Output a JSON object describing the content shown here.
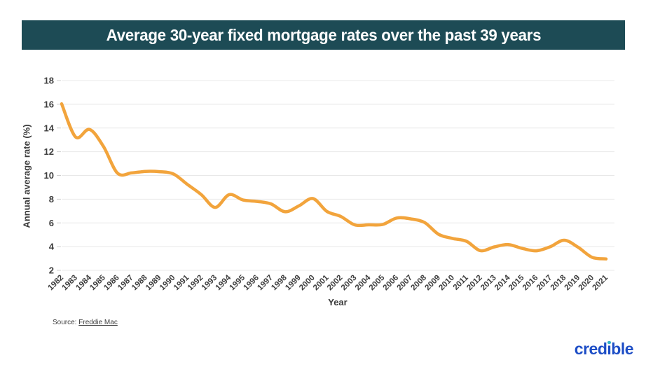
{
  "page": {
    "title": "Average 30-year fixed mortgage rates over the past 39 years",
    "source_label": "Source:",
    "source_link": "Freddie Mac",
    "logo": {
      "pre": "cred",
      "i_stem": "ı",
      "post": "ble"
    }
  },
  "colors": {
    "title_bar_bg": "#1d4b55",
    "title_text": "#ffffff",
    "line": "#f2a43c",
    "gridline": "#e8e8e8",
    "tick_mark": "#cfcfcf",
    "tick_text": "#3e3e3e",
    "logo_blue": "#1e4ec6",
    "logo_dot_teal": "#33b5c6"
  },
  "chart_data": {
    "type": "line",
    "title": "Average 30-year fixed mortgage rates over the past 39 years",
    "xlabel": "Year",
    "ylabel": "Annual average rate (%)",
    "categories": [
      "1982",
      "1983",
      "1984",
      "1985",
      "1986",
      "1987",
      "1988",
      "1989",
      "1990",
      "1991",
      "1992",
      "1993",
      "1994",
      "1995",
      "1996",
      "1997",
      "1998",
      "1999",
      "2000",
      "2001",
      "2002",
      "2003",
      "2004",
      "2005",
      "2006",
      "2007",
      "2008",
      "2009",
      "2010",
      "2011",
      "2012",
      "2013",
      "2014",
      "2015",
      "2016",
      "2017",
      "2018",
      "2019",
      "2020",
      "2021"
    ],
    "values": [
      16.04,
      13.24,
      13.88,
      12.43,
      10.19,
      10.21,
      10.34,
      10.32,
      10.13,
      9.25,
      8.39,
      7.31,
      8.38,
      7.93,
      7.81,
      7.6,
      6.94,
      7.44,
      8.05,
      6.97,
      6.54,
      5.83,
      5.84,
      5.87,
      6.41,
      6.34,
      6.03,
      5.04,
      4.69,
      4.45,
      3.66,
      3.98,
      4.17,
      3.85,
      3.65,
      3.99,
      4.54,
      3.94,
      3.1,
      2.96
    ],
    "ylim": [
      2,
      18
    ],
    "yticks": [
      18,
      16,
      14,
      12,
      10,
      8,
      6,
      4,
      2
    ],
    "grid": "horizontal",
    "legend": "none",
    "line_color": "#f2a43c",
    "smooth": true
  }
}
